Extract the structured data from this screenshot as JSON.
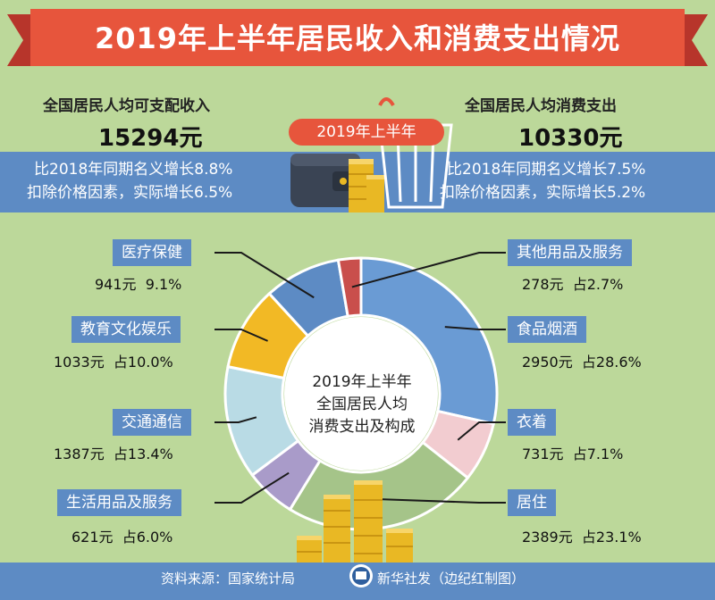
{
  "title": "2019年上半年居民收入和消费支出情况",
  "income": {
    "label": "全国居民人均可支配收入",
    "value": "15294元",
    "growth_nominal": "比2018年同期名义增长8.8%",
    "growth_real": "扣除价格因素，实际增长6.5%"
  },
  "consumption": {
    "label": "全国居民人均消费支出",
    "value": "10330元",
    "growth_nominal": "比2018年同期名义增长7.5%",
    "growth_real": "扣除价格因素，实际增长5.2%"
  },
  "period_pill": "2019年上半年",
  "center": {
    "line1": "2019年上半年",
    "line2": "全国居民人均",
    "line3": "消费支出及构成"
  },
  "footer": {
    "source": "资料来源：国家统计局",
    "credit": "新华社发（边纪红制图）"
  },
  "colors": {
    "banner": "#e7553c",
    "band": "#5d8bc4",
    "background": "#bcd89a"
  },
  "chart_data": {
    "type": "pie",
    "style": "donut",
    "unit": "元",
    "slices": [
      {
        "label": "食品烟酒",
        "value": 2950,
        "value_text": "2950元",
        "share_text": "占28.6%",
        "percent": 28.6,
        "color": "#6a9bd4"
      },
      {
        "label": "衣着",
        "value": 731,
        "value_text": "731元",
        "share_text": "占7.1%",
        "percent": 7.1,
        "color": "#f2ccd0"
      },
      {
        "label": "居住",
        "value": 2389,
        "value_text": "2389元",
        "share_text": "占23.1%",
        "percent": 23.1,
        "color": "#a5c489"
      },
      {
        "label": "生活用品及服务",
        "value": 621,
        "value_text": "621元",
        "share_text": "占6.0%",
        "percent": 6.0,
        "color": "#a99bc9"
      },
      {
        "label": "交通通信",
        "value": 1387,
        "value_text": "1387元",
        "share_text": "占13.4%",
        "percent": 13.4,
        "color": "#b9dbe5"
      },
      {
        "label": "教育文化娱乐",
        "value": 1033,
        "value_text": "1033元",
        "share_text": "占10.0%",
        "percent": 10.0,
        "color": "#f2b925"
      },
      {
        "label": "医疗保健",
        "value": 941,
        "value_text": "941元",
        "share_text": "9.1%",
        "percent": 9.1,
        "color": "#5d8bc4"
      },
      {
        "label": "其他用品及服务",
        "value": 278,
        "value_text": "278元",
        "share_text": "占2.7%",
        "percent": 2.7,
        "color": "#c94f4c"
      }
    ]
  }
}
